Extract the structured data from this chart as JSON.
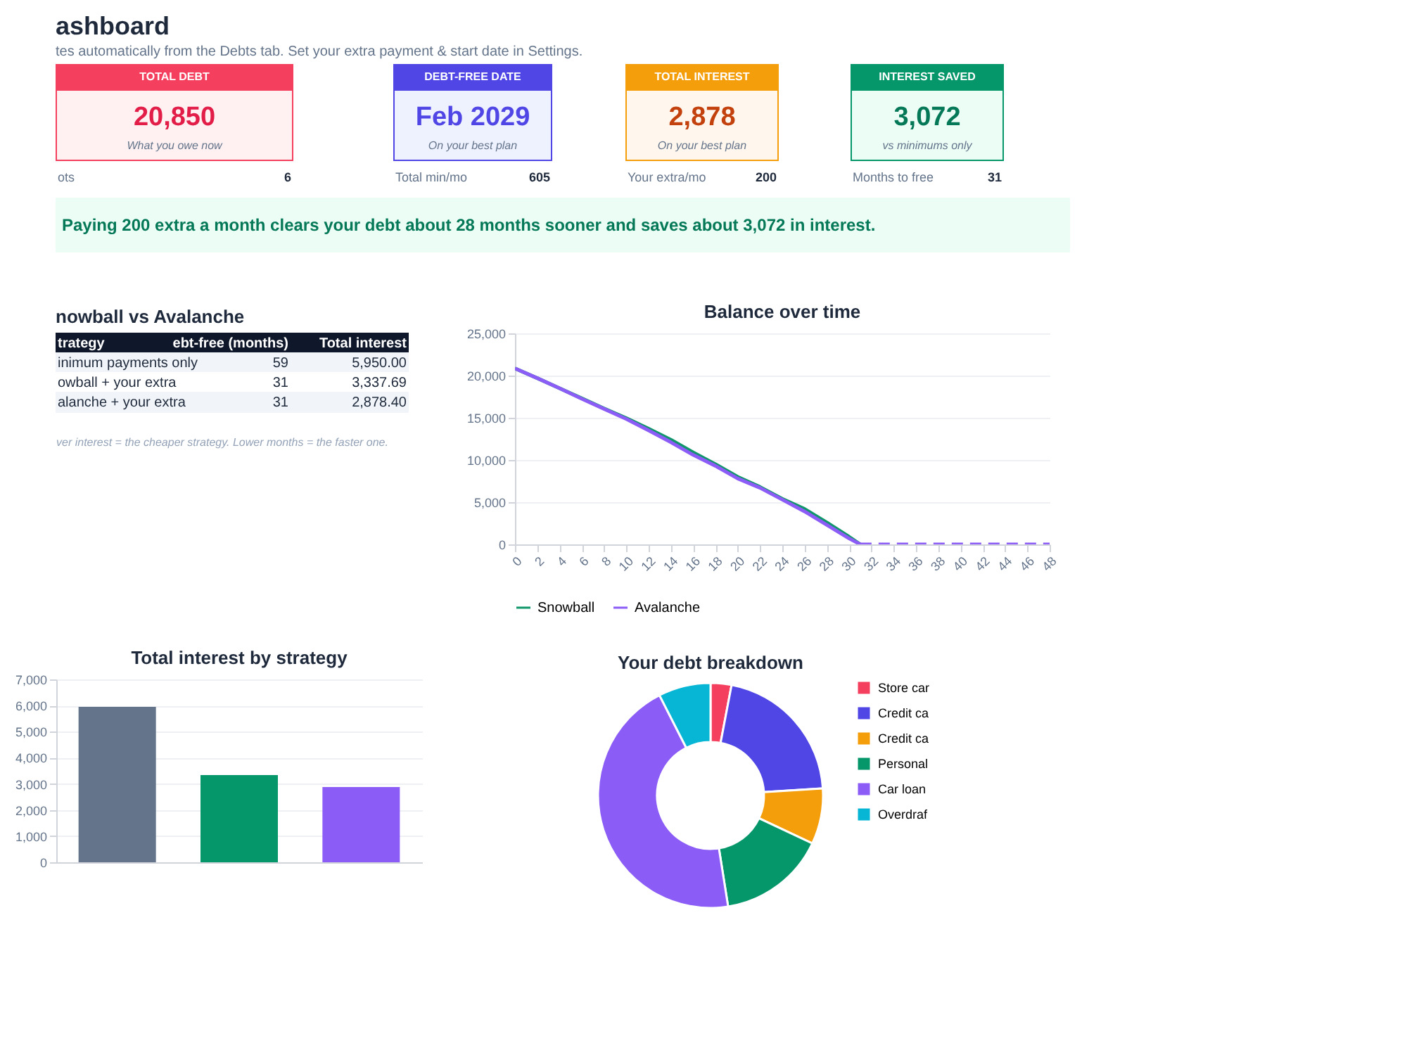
{
  "chart_data": [
    {
      "type": "other",
      "title": "ashboard",
      "subtitle": "tes automatically from the Debts tab. Set your extra payment & start date in Settings.",
      "annotations": [
        "TOTAL DEBT",
        "20,850",
        "What you owe now",
        "ots",
        "6",
        "DEBT-FREE DATE",
        "Feb 2029",
        "On your best plan",
        "Total min/mo",
        "605",
        "TOTAL INTEREST",
        "2,878",
        "On your best plan",
        "Your extra/mo",
        "200",
        "INTEREST SAVED",
        "3,072",
        "vs minimums only",
        "Months to free",
        "31",
        "Paying 200 extra a month clears your debt about 28 months sooner and saves about 3,072 in interest."
      ]
    },
    {
      "type": "other",
      "title": "nowball vs Avalanche",
      "annotations": [
        "trategy",
        "ebt-free (months)",
        "Total interest",
        "inimum payments only",
        "59",
        "5,950.00",
        "owball + your extra",
        "31",
        "3,337.69",
        "alanche + your extra",
        "31",
        "2,878.40",
        "ver interest = the cheaper strategy. Lower months = the faster one."
      ]
    },
    {
      "type": "line",
      "title": "Balance over time",
      "xlim": [
        0,
        48
      ],
      "xticks": [
        0,
        2,
        4,
        6,
        8,
        10,
        12,
        14,
        16,
        18,
        20,
        22,
        24,
        26,
        28,
        30,
        32,
        34,
        36,
        38,
        40,
        42,
        44,
        46,
        48
      ],
      "ylim": [
        0,
        25000
      ],
      "yticks": [
        0,
        {
          "value": 5000,
          "label": "5,000"
        },
        {
          "value": 10000,
          "label": "10,000"
        },
        {
          "value": 15000,
          "label": "15,000"
        },
        {
          "value": 20000,
          "label": "20,000"
        },
        {
          "value": 25000,
          "label": "25,000"
        }
      ],
      "grid": "y",
      "legend": "bottom",
      "series": [
        {
          "name": "Snowball",
          "color": "#10966a",
          "x": [
            0,
            2,
            4,
            6,
            8,
            10,
            12,
            14,
            16,
            18,
            20,
            22,
            24,
            26,
            28,
            30,
            31
          ],
          "values": [
            20850,
            19700,
            18500,
            17300,
            16100,
            14950,
            13700,
            12400,
            10900,
            9500,
            8000,
            6800,
            5400,
            4200,
            2600,
            900,
            0
          ]
        },
        {
          "name": "Avalanche",
          "color": "#8b5cf6",
          "x": [
            0,
            2,
            4,
            6,
            8,
            10,
            12,
            14,
            16,
            18,
            20,
            22,
            24,
            26,
            28,
            30,
            31
          ],
          "values": [
            20850,
            19700,
            18500,
            17250,
            16050,
            14850,
            13500,
            12100,
            10600,
            9300,
            7800,
            6700,
            5300,
            3900,
            2300,
            700,
            0
          ]
        },
        {
          "color": "#8b5cf6",
          "line_style": "dashed",
          "x": [
            31,
            48
          ],
          "values": [
            0,
            0
          ]
        }
      ]
    },
    {
      "type": "bar",
      "title": "Total interest by strategy",
      "categories": [
        null,
        null,
        null
      ],
      "values": [
        5950,
        3340,
        2880
      ],
      "colors": [
        "#64748b",
        "#059669",
        "#8b5cf6"
      ],
      "ylim": [
        0,
        7000
      ],
      "yticks": [
        0,
        {
          "value": 1000,
          "label": "1,000"
        },
        {
          "value": 2000,
          "label": "2,000"
        },
        {
          "value": 3000,
          "label": "3,000"
        },
        {
          "value": 4000,
          "label": "4,000"
        },
        {
          "value": 5000,
          "label": "5,000"
        },
        {
          "value": 6000,
          "label": "6,000"
        },
        {
          "value": 7000,
          "label": "7,000"
        }
      ],
      "grid": "y"
    },
    {
      "type": "donut",
      "title": "Your debt breakdown",
      "categories": [
        "Store car",
        "Credit ca",
        "Credit ca",
        "Personal",
        "Car loan",
        "Overdraf"
      ],
      "values": [
        3,
        21,
        8,
        15.5,
        45,
        7.5
      ],
      "colors": [
        "#f43f5e",
        "#4f46e5",
        "#f59e0b",
        "#059669",
        "#8b5cf6",
        "#06b6d4"
      ],
      "legend": "right"
    }
  ]
}
